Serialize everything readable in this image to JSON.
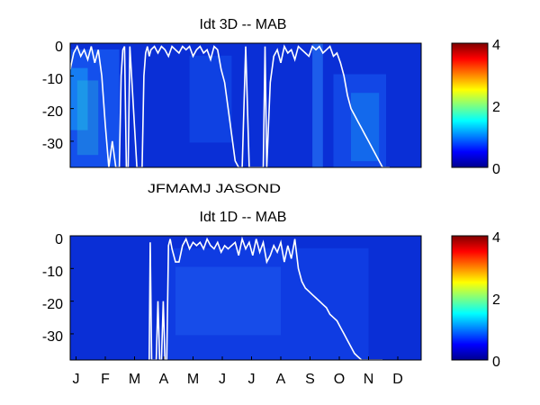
{
  "chart_data": [
    {
      "type": "heatmap",
      "title": "Idt 3D   -- MAB",
      "xlabel": "",
      "ylabel": "",
      "ylim": [
        -38,
        0
      ],
      "yticks": [
        "0",
        "-10",
        "-20",
        "-30"
      ],
      "xtick_labels": [
        "JFMAMJ JASOND"
      ],
      "colorbar": {
        "ticks": [
          "4",
          "2",
          "0"
        ],
        "range": [
          0,
          4
        ],
        "colormap": "jet"
      },
      "overlay_line_color": "#ffffff",
      "overlay_line": {
        "x": [
          0.0,
          0.01,
          0.02,
          0.03,
          0.04,
          0.05,
          0.06,
          0.07,
          0.08,
          0.09,
          0.1,
          0.11,
          0.12,
          0.13,
          0.14,
          0.145,
          0.15,
          0.155,
          0.16,
          0.165,
          0.17,
          0.19,
          0.205,
          0.21,
          0.215,
          0.22,
          0.225,
          0.23,
          0.24,
          0.25,
          0.26,
          0.27,
          0.28,
          0.29,
          0.3,
          0.31,
          0.32,
          0.33,
          0.34,
          0.35,
          0.36,
          0.37,
          0.38,
          0.39,
          0.4,
          0.41,
          0.42,
          0.43,
          0.44,
          0.45,
          0.46,
          0.47,
          0.48,
          0.49,
          0.5,
          0.51,
          0.55,
          0.555,
          0.56,
          0.57,
          0.58,
          0.59,
          0.6,
          0.61,
          0.62,
          0.63,
          0.64,
          0.65,
          0.66,
          0.67,
          0.68,
          0.69,
          0.7,
          0.71,
          0.72,
          0.73,
          0.74,
          0.75,
          0.76,
          0.77,
          0.78,
          0.79,
          0.8,
          0.81,
          0.82,
          0.83,
          0.84,
          0.85,
          0.86,
          0.87,
          0.88,
          0.89,
          0.9,
          0.91
        ],
        "y": [
          -8,
          -3,
          -1,
          -4,
          -2,
          -5,
          -1,
          -6,
          -2,
          -10,
          -25,
          -38,
          -30,
          -38,
          -38,
          -10,
          -2,
          -1,
          -38,
          -38,
          -1,
          -38,
          -38,
          -10,
          -3,
          -1,
          -4,
          -2,
          -1,
          -3,
          -1,
          -2,
          -4,
          -1,
          -2,
          -3,
          -1,
          -2,
          -1,
          -4,
          -2,
          -1,
          -3,
          -2,
          -5,
          -1,
          -2,
          -8,
          -12,
          -20,
          -28,
          -36,
          -38,
          -38,
          -1,
          -38,
          -38,
          -1,
          -38,
          -12,
          -4,
          -2,
          -6,
          -1,
          -3,
          -2,
          -5,
          -1,
          -2,
          -3,
          -4,
          -1,
          -2,
          -1,
          -3,
          -2,
          -1,
          -4,
          -3,
          -6,
          -10,
          -16,
          -20,
          -22,
          -24,
          -26,
          -28,
          -30,
          -32,
          -34,
          -36,
          -38,
          -38,
          -38
        ]
      }
    },
    {
      "type": "heatmap",
      "title": "Idt 1D   -- MAB",
      "xlabel": "",
      "ylabel": "",
      "ylim": [
        -38,
        0
      ],
      "yticks": [
        "0",
        "-10",
        "-20",
        "-30"
      ],
      "xtick_labels": [
        "J",
        "F",
        "M",
        "A",
        "M",
        "J",
        "J",
        "A",
        "S",
        "O",
        "N",
        "D"
      ],
      "colorbar": {
        "ticks": [
          "4",
          "2",
          "0"
        ],
        "range": [
          0,
          4
        ],
        "colormap": "jet"
      },
      "overlay_line_color": "#ffffff",
      "overlay_line": {
        "x": [
          0.225,
          0.228,
          0.232,
          0.245,
          0.25,
          0.255,
          0.26,
          0.265,
          0.27,
          0.275,
          0.28,
          0.285,
          0.29,
          0.3,
          0.31,
          0.32,
          0.33,
          0.34,
          0.35,
          0.36,
          0.37,
          0.38,
          0.39,
          0.4,
          0.41,
          0.42,
          0.43,
          0.44,
          0.45,
          0.46,
          0.47,
          0.48,
          0.49,
          0.5,
          0.51,
          0.52,
          0.53,
          0.54,
          0.55,
          0.56,
          0.57,
          0.58,
          0.59,
          0.6,
          0.61,
          0.62,
          0.63,
          0.64,
          0.65,
          0.66,
          0.67,
          0.68,
          0.69,
          0.7,
          0.71,
          0.72,
          0.73,
          0.74,
          0.75,
          0.76,
          0.77,
          0.78,
          0.79,
          0.8,
          0.81,
          0.82,
          0.83,
          0.84,
          0.85,
          0.86,
          0.87,
          0.88,
          0.89
        ],
        "y": [
          -38,
          -2,
          -38,
          -38,
          -20,
          -38,
          -38,
          -20,
          -38,
          -38,
          -3,
          -1,
          -4,
          -8,
          -8,
          -3,
          -1,
          -4,
          -2,
          -3,
          -2,
          -4,
          -1,
          -3,
          -4,
          -2,
          -5,
          -3,
          -4,
          -3,
          -2,
          -6,
          -1,
          -4,
          -2,
          -6,
          -1,
          -5,
          -2,
          -8,
          -6,
          -3,
          -5,
          -2,
          -8,
          -3,
          -7,
          -1,
          -10,
          -14,
          -16,
          -17,
          -18,
          -19,
          -20,
          -21,
          -22,
          -24,
          -25,
          -26,
          -28,
          -30,
          -32,
          -34,
          -36,
          -37,
          -38,
          -38,
          -38,
          -38,
          -38,
          -38,
          -38
        ]
      }
    }
  ]
}
